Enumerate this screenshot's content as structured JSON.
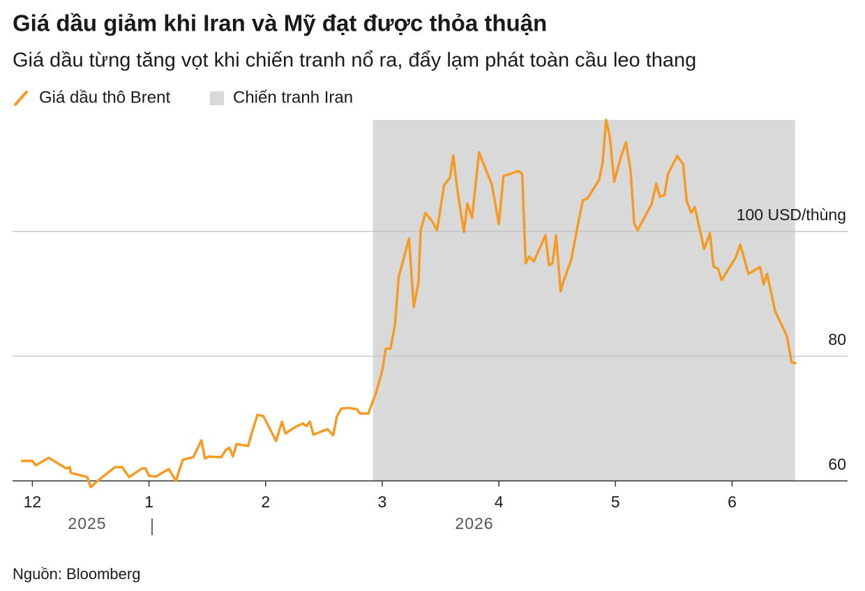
{
  "chart_data": {
    "type": "line",
    "title": "Giá dầu giảm khi Iran và Mỹ đạt được thỏa thuận",
    "subtitle": "Giá dầu từng tăng vọt khi chiến tranh nổ ra, đẩy lạm phát toàn cầu leo thang",
    "source": "Nguồn: Bloomberg",
    "year_labels": [
      "2025",
      "2026"
    ],
    "shade": {
      "name": "Chiến tranh Iran",
      "x": [
        2.92,
        6.54
      ],
      "color": "#d9d9d9"
    },
    "xlim": [
      -0.17,
      6.99
    ],
    "xticks": [
      {
        "value": 0,
        "label": "12"
      },
      1,
      2,
      3,
      4,
      5,
      6
    ],
    "ylim": [
      60,
      117.9
    ],
    "yticks": [
      60,
      80,
      {
        "value": 100,
        "label": "100 USD/thùng"
      }
    ],
    "grid": true,
    "x": [
      -0.09,
      0.0,
      0.03,
      0.14,
      0.29,
      0.32,
      0.33,
      0.47,
      0.5,
      0.56,
      0.62,
      0.71,
      0.77,
      0.83,
      0.94,
      0.97,
      1.0,
      1.06,
      1.17,
      1.23,
      1.29,
      1.38,
      1.45,
      1.48,
      1.51,
      1.62,
      1.66,
      1.69,
      1.72,
      1.75,
      1.85,
      1.88,
      1.93,
      1.98,
      2.09,
      2.14,
      2.17,
      2.26,
      2.32,
      2.35,
      2.38,
      2.41,
      2.53,
      2.58,
      2.61,
      2.65,
      2.71,
      2.78,
      2.81,
      2.88,
      2.95,
      3.0,
      3.03,
      3.07,
      3.11,
      3.14,
      3.23,
      3.27,
      3.31,
      3.33,
      3.37,
      3.43,
      3.47,
      3.53,
      3.58,
      3.61,
      3.64,
      3.7,
      3.73,
      3.77,
      3.83,
      3.94,
      4.0,
      4.04,
      4.17,
      4.2,
      4.23,
      4.26,
      4.3,
      4.34,
      4.4,
      4.43,
      4.46,
      4.49,
      4.53,
      4.55,
      4.62,
      4.68,
      4.72,
      4.76,
      4.86,
      4.89,
      4.92,
      4.95,
      4.99,
      5.04,
      5.09,
      5.13,
      5.16,
      5.19,
      5.31,
      5.35,
      5.38,
      5.42,
      5.45,
      5.53,
      5.58,
      5.61,
      5.65,
      5.68,
      5.76,
      5.81,
      5.84,
      5.88,
      5.91,
      6.03,
      6.07,
      6.14,
      6.24,
      6.27,
      6.3,
      6.37,
      6.47,
      6.51,
      6.54
    ],
    "series": [
      {
        "name": "Giá dầu thô Brent",
        "color": "#f59a23",
        "values": [
          63.2,
          63.2,
          62.5,
          63.7,
          62.0,
          62.2,
          61.3,
          60.6,
          59.0,
          60.0,
          60.9,
          62.2,
          62.2,
          60.6,
          62.0,
          62.0,
          60.8,
          60.7,
          61.9,
          60.0,
          63.4,
          63.8,
          66.5,
          63.6,
          63.9,
          63.8,
          65.0,
          65.3,
          63.9,
          65.9,
          65.6,
          67.6,
          70.6,
          70.4,
          66.4,
          69.5,
          67.6,
          68.7,
          69.2,
          68.8,
          69.5,
          67.4,
          68.3,
          67.3,
          70.3,
          71.6,
          71.7,
          71.5,
          70.8,
          70.8,
          74.3,
          77.7,
          81.2,
          81.2,
          85.1,
          92.6,
          98.9,
          87.9,
          91.8,
          100.2,
          103.0,
          101.6,
          100.2,
          107.4,
          108.6,
          112.2,
          107.2,
          99.9,
          104.5,
          102.2,
          112.7,
          107.5,
          101.2,
          108.9,
          109.7,
          109.2,
          94.9,
          96.0,
          95.2,
          96.9,
          99.4,
          94.6,
          94.9,
          99.4,
          90.4,
          91.8,
          95.4,
          101.3,
          105.0,
          105.3,
          108.3,
          111.0,
          117.9,
          115.3,
          108.0,
          111.6,
          114.3,
          109.7,
          101.3,
          100.2,
          104.4,
          107.7,
          105.6,
          105.8,
          109.2,
          112.1,
          110.8,
          104.9,
          103.0,
          103.9,
          97.2,
          99.7,
          94.4,
          94.0,
          92.2,
          95.8,
          97.9,
          93.2,
          94.3,
          91.5,
          93.2,
          87.2,
          83.2,
          79.0,
          78.9
        ]
      }
    ]
  }
}
